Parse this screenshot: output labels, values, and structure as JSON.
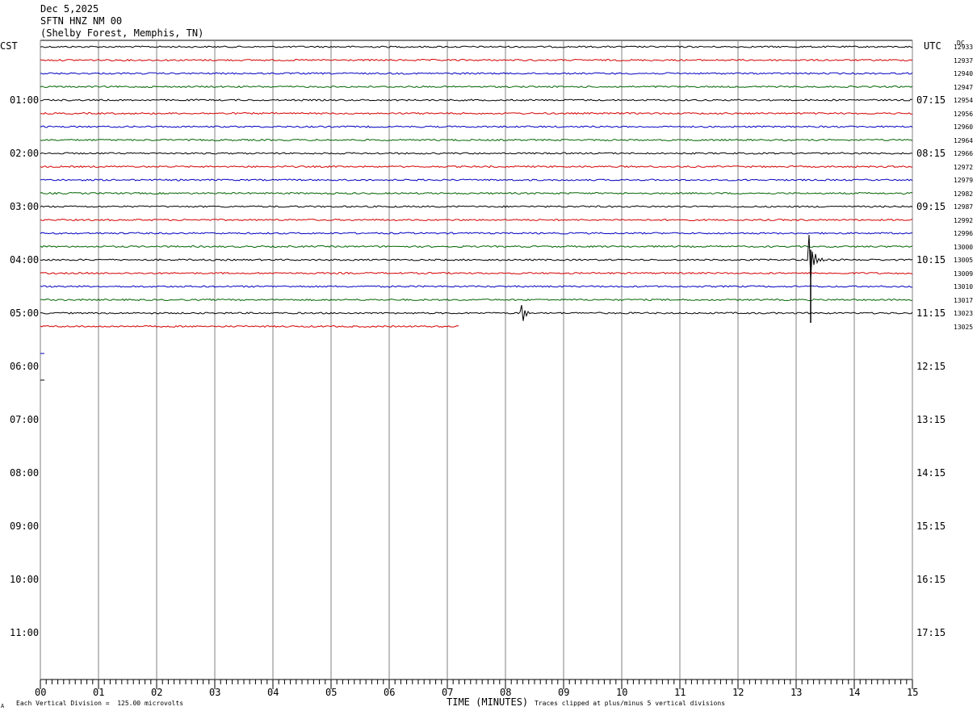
{
  "header": {
    "date": "Dec 5,2025",
    "station": "SFTN HNZ NM 00",
    "location": "(Shelby Forest, Memphis, TN)"
  },
  "axis": {
    "left_zone": "CST",
    "right_zone": "UTC",
    "dc_label": "DC",
    "xlabel": "TIME (MINUTES)",
    "footer_left": "Each Vertical Division =  125.00 microvolts",
    "footer_right": "Traces clipped at plus/minus 5 vertical divisions",
    "corner_mark": "A"
  },
  "colors": {
    "c0": "#000000",
    "c1": "#d40000",
    "c2": "#0000c0",
    "c3": "#006400",
    "grid": "#808080"
  },
  "chart_data": {
    "type": "line",
    "x_range_minutes": [
      0,
      15
    ],
    "x_ticks": [
      "00",
      "01",
      "02",
      "03",
      "04",
      "05",
      "06",
      "07",
      "08",
      "09",
      "10",
      "11",
      "12",
      "13",
      "14",
      "15"
    ],
    "left_hour_labels": [
      "01:00",
      "02:00",
      "03:00",
      "04:00",
      "05:00",
      "06:00",
      "07:00",
      "08:00",
      "09:00",
      "10:00",
      "11:00"
    ],
    "right_hour_labels": [
      "07:15",
      "08:15",
      "09:15",
      "10:15",
      "11:15",
      "12:15",
      "13:15",
      "14:15",
      "15:15",
      "16:15",
      "17:15"
    ],
    "dc_values": [
      "12933",
      "12937",
      "12940",
      "12947",
      "12954",
      "12956",
      "12960",
      "12964",
      "12966",
      "12972",
      "12979",
      "12982",
      "12987",
      "12992",
      "12996",
      "13000",
      "13005",
      "13009",
      "13010",
      "13017",
      "13023",
      "13025"
    ],
    "trace_count": 22,
    "last_trace_end_minute": 7.2,
    "events": [
      {
        "trace": 16,
        "minute": 13.25,
        "amplitude": "large"
      },
      {
        "trace": 20,
        "minute": 8.3,
        "amplitude": "small"
      }
    ]
  }
}
